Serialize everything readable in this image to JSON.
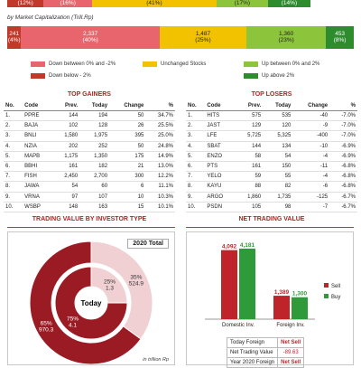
{
  "top_bar": {
    "segments": [
      {
        "label": "(12%)",
        "color": "#c0392b"
      },
      {
        "label": "(16%)",
        "color": "#e8656e"
      },
      {
        "label": "(41%)",
        "color": "#f2c200"
      },
      {
        "label": "(17%)",
        "color": "#8cc43c"
      },
      {
        "label": "(14%)",
        "color": "#2e8b2e"
      }
    ]
  },
  "subtitle": "by Market Capitalization (Trill.Rp)",
  "mcap_bar": {
    "segments": [
      {
        "value": "241",
        "pct": "(4%)",
        "color": "#c0392b"
      },
      {
        "value": "2,337",
        "pct": "(40%)",
        "color": "#e8656e"
      },
      {
        "value": "1,487",
        "pct": "(25%)",
        "color": "#f2c200"
      },
      {
        "value": "1,360",
        "pct": "(23%)",
        "color": "#8cc43c"
      },
      {
        "value": "453",
        "pct": "(8%)",
        "color": "#2e8b2e"
      }
    ]
  },
  "legend": {
    "down_small": "Down between 0% and -2%",
    "down_big": "Down below - 2%",
    "unchanged": "Unchanged Stocks",
    "up_small": "Up between 0% and 2%",
    "up_big": "Up above 2%"
  },
  "gainers": {
    "title": "TOP GAINERS",
    "headers": [
      "No.",
      "Code",
      "Prev.",
      "Today",
      "Change",
      "%"
    ],
    "rows": [
      [
        "1.",
        "PPRE",
        "144",
        "194",
        "50",
        "34.7%"
      ],
      [
        "2.",
        "BAJA",
        "102",
        "128",
        "26",
        "25.5%"
      ],
      [
        "3.",
        "BNLI",
        "1,580",
        "1,975",
        "395",
        "25.0%"
      ],
      [
        "4.",
        "NZIA",
        "202",
        "252",
        "50",
        "24.8%"
      ],
      [
        "5.",
        "MAPB",
        "1,175",
        "1,350",
        "175",
        "14.9%"
      ],
      [
        "6.",
        "BBHI",
        "161",
        "182",
        "21",
        "13.0%"
      ],
      [
        "7.",
        "FISH",
        "2,450",
        "2,700",
        "300",
        "12.2%"
      ],
      [
        "8.",
        "JAWA",
        "54",
        "60",
        "6",
        "11.1%"
      ],
      [
        "9.",
        "VRNA",
        "97",
        "107",
        "10",
        "10.3%"
      ],
      [
        "10.",
        "WSBP",
        "148",
        "163",
        "15",
        "10.1%"
      ]
    ]
  },
  "losers": {
    "title": "TOP LOSERS",
    "headers": [
      "No.",
      "Code",
      "Prev.",
      "Today",
      "Change",
      "%"
    ],
    "rows": [
      [
        "1.",
        "HITS",
        "575",
        "535",
        "-40",
        "-7.0%"
      ],
      [
        "2.",
        "JAST",
        "129",
        "120",
        "-9",
        "-7.0%"
      ],
      [
        "3.",
        "LFE",
        "5,725",
        "5,325",
        "-400",
        "-7.0%"
      ],
      [
        "4.",
        "SBAT",
        "144",
        "134",
        "-10",
        "-6.9%"
      ],
      [
        "5.",
        "ENZO",
        "58",
        "54",
        "-4",
        "-6.9%"
      ],
      [
        "6.",
        "PTS",
        "161",
        "150",
        "-11",
        "-6.8%"
      ],
      [
        "7.",
        "YELO",
        "59",
        "55",
        "-4",
        "-6.8%"
      ],
      [
        "8.",
        "KAYU",
        "88",
        "82",
        "-6",
        "-6.8%"
      ],
      [
        "9.",
        "ARGO",
        "1,860",
        "1,735",
        "-125",
        "-6.7%"
      ],
      [
        "10.",
        "PSDN",
        "105",
        "98",
        "-7",
        "-6.7%"
      ]
    ]
  },
  "trading_value_title": "TRADING VALUE BY INVESTOR TYPE",
  "net_trading_title": "NET TRADING VALUE",
  "chart_data": [
    {
      "type": "pie",
      "title": "",
      "rings": [
        {
          "name": "2020 Total",
          "slices": [
            {
              "label": "35%",
              "value": "524.9",
              "pct": 35,
              "color": "#f0d0d3"
            },
            {
              "label": "65%",
              "value": "970.3",
              "pct": 65,
              "color": "#9b1b24"
            }
          ]
        },
        {
          "name": "Today",
          "slices": [
            {
              "label": "25%",
              "value": "1.3",
              "pct": 25,
              "color": "#f0d0d3"
            },
            {
              "label": "75%",
              "value": "4.1",
              "pct": 75,
              "color": "#9b1b24"
            }
          ]
        }
      ],
      "outer_label": "2020 Total",
      "inner_label": "Today",
      "footnote": "in trillion Rp"
    },
    {
      "type": "bar",
      "categories": [
        "Domestic Inv.",
        "Foreign Inv."
      ],
      "series": [
        {
          "name": "Sell",
          "color": "#c0242b",
          "values": [
            4092,
            1389
          ]
        },
        {
          "name": "Buy",
          "color": "#2e9a3a",
          "values": [
            4181,
            1300
          ]
        }
      ],
      "value_labels": [
        [
          "4,092",
          "1,389"
        ],
        [
          "4,181",
          "1,300"
        ]
      ],
      "ylim": [
        0,
        4500
      ]
    }
  ],
  "net_trading": {
    "row1_label": "Today Foreign",
    "row1_value": "Net Sell",
    "row2_label": "Net Trading Value",
    "row2_value": "-89.63",
    "row3_label": "Year 2020 Foreign",
    "row3_value": "Net Sell"
  }
}
